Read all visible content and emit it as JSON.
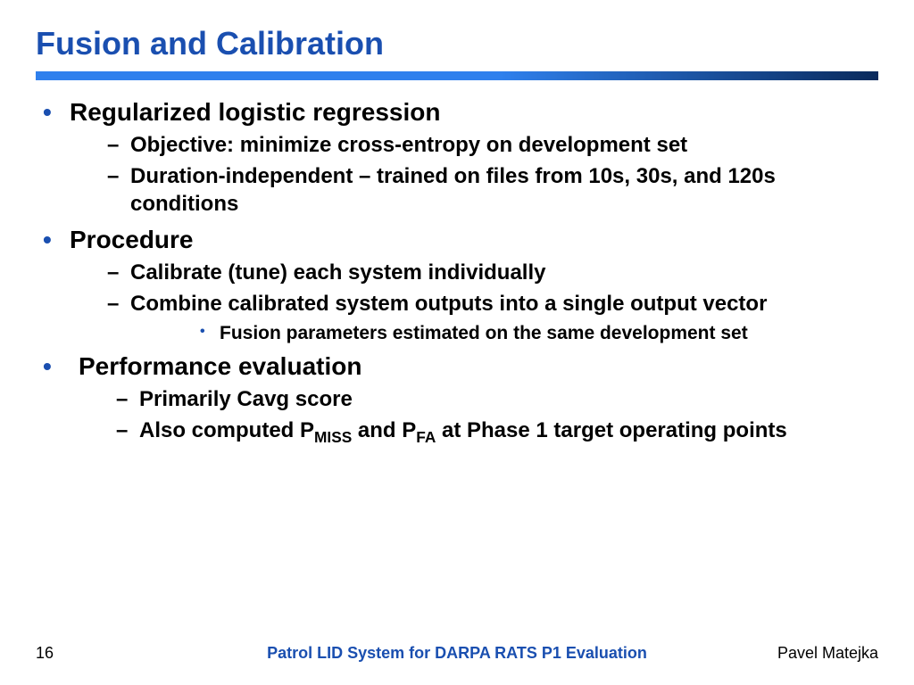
{
  "colors": {
    "title": "#1a4fb0",
    "bullet_l1": "#1a4fb0",
    "bullet_l3": "#1a4fb0",
    "rule_start": "#2f80ed",
    "rule_end": "#0a2a5c",
    "footer_center": "#1a4fb0"
  },
  "title": "Fusion and Calibration",
  "bullets": [
    {
      "text": "Regularized logistic regression",
      "children": [
        {
          "text": "Objective: minimize cross-entropy on development set"
        },
        {
          "text": "Duration-independent – trained on files from 10s, 30s, and 120s conditions"
        }
      ]
    },
    {
      "text": "Procedure",
      "children": [
        {
          "text": "Calibrate (tune) each system individually"
        },
        {
          "text": "Combine calibrated system outputs into a single output vector",
          "children": [
            {
              "text": "Fusion parameters estimated on the same development set"
            }
          ]
        }
      ]
    },
    {
      "text": "Performance evaluation",
      "extra_indent": true,
      "children": [
        {
          "text": "Primarily Cavg score"
        },
        {
          "html": "Also computed P<span class=\"sub\">MISS</span> and P<span class=\"sub\">FA</span> at Phase 1 target operating points"
        }
      ]
    }
  ],
  "footer": {
    "page": "16",
    "center": "Patrol LID System for DARPA RATS P1 Evaluation",
    "author": "Pavel Matejka"
  }
}
